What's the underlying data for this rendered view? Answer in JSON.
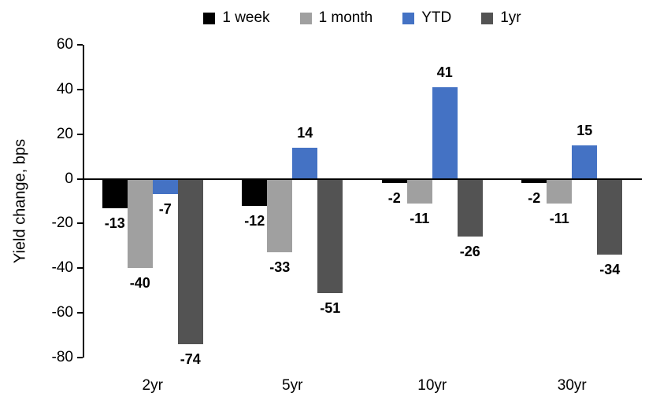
{
  "chart_data": {
    "type": "bar",
    "title": "",
    "xlabel": "",
    "ylabel": "Yield change, bps",
    "categories": [
      "2yr",
      "5yr",
      "10yr",
      "30yr"
    ],
    "series": [
      {
        "name": "1 week",
        "color": "#000000",
        "values": [
          -13,
          -12,
          -2,
          -2
        ]
      },
      {
        "name": "1 month",
        "color": "#A0A0A0",
        "values": [
          -40,
          -33,
          -11,
          -11
        ]
      },
      {
        "name": "YTD",
        "color": "#4472C4",
        "values": [
          -7,
          14,
          41,
          15
        ]
      },
      {
        "name": "1yr",
        "color": "#535353",
        "values": [
          -74,
          -51,
          -26,
          -34
        ]
      }
    ],
    "ylim": [
      -80,
      60
    ],
    "yticks": [
      60,
      40,
      20,
      0,
      -20,
      -40,
      -60,
      -80
    ],
    "grid": false,
    "legend_position": "top",
    "data_labels": "outside-end",
    "axis_color": "#000000"
  }
}
